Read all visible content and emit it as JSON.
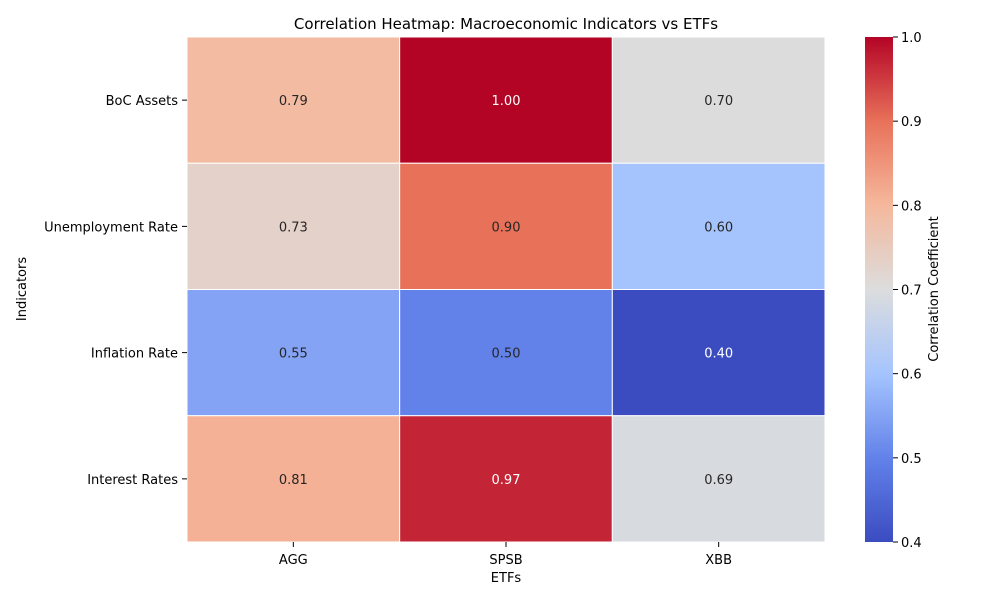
{
  "chart_data": {
    "type": "heatmap",
    "title": "Correlation Heatmap: Macroeconomic Indicators vs ETFs",
    "xlabel": "ETFs",
    "ylabel": "Indicators",
    "x_categories": [
      "AGG",
      "SPSB",
      "XBB"
    ],
    "y_categories": [
      "BoC Assets",
      "Unemployment Rate",
      "Inflation Rate",
      "Interest Rates"
    ],
    "values": [
      [
        0.79,
        1.0,
        0.7
      ],
      [
        0.73,
        0.9,
        0.6
      ],
      [
        0.55,
        0.5,
        0.4
      ],
      [
        0.81,
        0.97,
        0.69
      ]
    ],
    "value_labels": [
      [
        "0.79",
        "1.00",
        "0.70"
      ],
      [
        "0.73",
        "0.90",
        "0.60"
      ],
      [
        "0.55",
        "0.50",
        "0.40"
      ],
      [
        "0.81",
        "0.97",
        "0.69"
      ]
    ],
    "colormap": "coolwarm",
    "colorbar": {
      "label": "Correlation Coefficient",
      "range": [
        0.4,
        1.0
      ],
      "ticks": [
        "0.4",
        "0.5",
        "0.6",
        "0.7",
        "0.8",
        "0.9",
        "1.0"
      ]
    },
    "grid": false,
    "legend": "colorbar-right"
  }
}
